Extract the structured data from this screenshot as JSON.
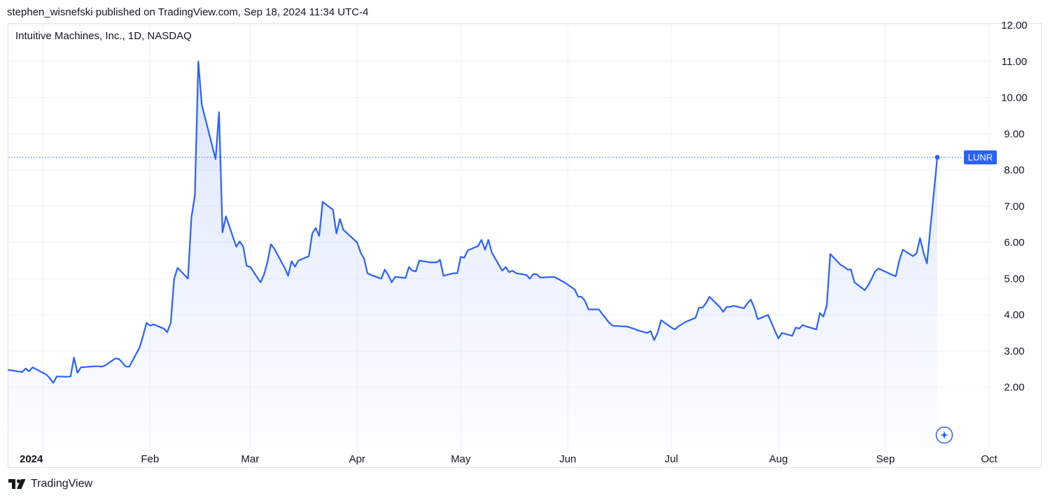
{
  "header": {
    "published": "stephen_wisnefski published on TradingView.com, Sep 18, 2024 11:34 UTC-4"
  },
  "symbol_info": "Intuitive Machines, Inc., 1D, NASDAQ",
  "footer": {
    "brand": "TradingView"
  },
  "colors": {
    "line": "#2962ff",
    "grid": "#f0f3fa",
    "badge": "#2962ff"
  },
  "icons": [
    "tradingview-logo-icon",
    "sparkle-icon"
  ],
  "chart_data": {
    "type": "area",
    "title": "",
    "symbol": "LUNR",
    "last_value": 8.35,
    "xlabel": "",
    "ylabel": "",
    "ylim": [
      1.26,
      12.0
    ],
    "y_ticks": [
      2.0,
      3.0,
      4.0,
      5.0,
      6.0,
      7.0,
      8.0,
      9.0,
      10.0,
      11.0,
      12.0
    ],
    "y_tick_labels": [
      "2.00",
      "3.00",
      "4.00",
      "5.00",
      "6.00",
      "7.00",
      "8.00",
      "9.00",
      "10.00",
      "11.00",
      "12.00"
    ],
    "x_range": [
      "2023-12-22",
      "2024-10-01"
    ],
    "x_ticks": [
      {
        "date": "2024-01-01",
        "label": "2024",
        "bold": true
      },
      {
        "date": "2024-02-01",
        "label": "Feb"
      },
      {
        "date": "2024-03-01",
        "label": "Mar"
      },
      {
        "date": "2024-04-01",
        "label": "Apr"
      },
      {
        "date": "2024-05-01",
        "label": "May"
      },
      {
        "date": "2024-06-01",
        "label": "Jun"
      },
      {
        "date": "2024-07-01",
        "label": "Jul"
      },
      {
        "date": "2024-08-01",
        "label": "Aug"
      },
      {
        "date": "2024-09-01",
        "label": "Sep"
      },
      {
        "date": "2024-10-01",
        "label": "Oct"
      }
    ],
    "grid": true,
    "series": [
      {
        "values": [
          [
            "2023-12-22",
            2.48
          ],
          [
            "2023-12-26",
            2.42
          ],
          [
            "2023-12-27",
            2.52
          ],
          [
            "2023-12-28",
            2.44
          ],
          [
            "2023-12-29",
            2.55
          ],
          [
            "2024-01-02",
            2.35
          ],
          [
            "2024-01-03",
            2.25
          ],
          [
            "2024-01-04",
            2.12
          ],
          [
            "2024-01-05",
            2.3
          ],
          [
            "2024-01-08",
            2.29
          ],
          [
            "2024-01-09",
            2.3
          ],
          [
            "2024-01-10",
            2.82
          ],
          [
            "2024-01-11",
            2.4
          ],
          [
            "2024-01-12",
            2.55
          ],
          [
            "2024-01-16",
            2.58
          ],
          [
            "2024-01-17",
            2.58
          ],
          [
            "2024-01-18",
            2.57
          ],
          [
            "2024-01-19",
            2.6
          ],
          [
            "2024-01-22",
            2.8
          ],
          [
            "2024-01-23",
            2.78
          ],
          [
            "2024-01-24",
            2.68
          ],
          [
            "2024-01-25",
            2.57
          ],
          [
            "2024-01-26",
            2.57
          ],
          [
            "2024-01-29",
            3.1
          ],
          [
            "2024-01-30",
            3.42
          ],
          [
            "2024-01-31",
            3.78
          ],
          [
            "2024-02-01",
            3.7
          ],
          [
            "2024-02-02",
            3.74
          ],
          [
            "2024-02-05",
            3.62
          ],
          [
            "2024-02-06",
            3.52
          ],
          [
            "2024-02-07",
            3.78
          ],
          [
            "2024-02-08",
            5.0
          ],
          [
            "2024-02-09",
            5.3
          ],
          [
            "2024-02-12",
            5.0
          ],
          [
            "2024-02-13",
            6.7
          ],
          [
            "2024-02-14",
            7.3
          ],
          [
            "2024-02-15",
            11.0
          ],
          [
            "2024-02-16",
            9.8
          ],
          [
            "2024-02-20",
            8.3
          ],
          [
            "2024-02-21",
            9.6
          ],
          [
            "2024-02-22",
            6.28
          ],
          [
            "2024-02-23",
            6.72
          ],
          [
            "2024-02-26",
            5.88
          ],
          [
            "2024-02-27",
            6.03
          ],
          [
            "2024-02-28",
            5.88
          ],
          [
            "2024-02-29",
            5.35
          ],
          [
            "2024-03-01",
            5.33
          ],
          [
            "2024-03-04",
            4.9
          ],
          [
            "2024-03-05",
            5.1
          ],
          [
            "2024-03-06",
            5.45
          ],
          [
            "2024-03-07",
            5.95
          ],
          [
            "2024-03-08",
            5.83
          ],
          [
            "2024-03-11",
            5.3
          ],
          [
            "2024-03-12",
            5.08
          ],
          [
            "2024-03-13",
            5.48
          ],
          [
            "2024-03-14",
            5.33
          ],
          [
            "2024-03-15",
            5.5
          ],
          [
            "2024-03-18",
            5.62
          ],
          [
            "2024-03-19",
            6.25
          ],
          [
            "2024-03-20",
            6.4
          ],
          [
            "2024-03-21",
            6.18
          ],
          [
            "2024-03-22",
            7.12
          ],
          [
            "2024-03-25",
            6.9
          ],
          [
            "2024-03-26",
            6.25
          ],
          [
            "2024-03-27",
            6.65
          ],
          [
            "2024-03-28",
            6.35
          ],
          [
            "2024-04-01",
            6.0
          ],
          [
            "2024-04-02",
            5.72
          ],
          [
            "2024-04-03",
            5.55
          ],
          [
            "2024-04-04",
            5.15
          ],
          [
            "2024-04-05",
            5.1
          ],
          [
            "2024-04-08",
            5.0
          ],
          [
            "2024-04-09",
            5.25
          ],
          [
            "2024-04-10",
            5.1
          ],
          [
            "2024-04-11",
            4.9
          ],
          [
            "2024-04-12",
            5.05
          ],
          [
            "2024-04-15",
            5.02
          ],
          [
            "2024-04-16",
            5.32
          ],
          [
            "2024-04-17",
            5.22
          ],
          [
            "2024-04-18",
            5.2
          ],
          [
            "2024-04-19",
            5.5
          ],
          [
            "2024-04-22",
            5.45
          ],
          [
            "2024-04-23",
            5.45
          ],
          [
            "2024-04-24",
            5.45
          ],
          [
            "2024-04-25",
            5.52
          ],
          [
            "2024-04-26",
            5.08
          ],
          [
            "2024-04-29",
            5.15
          ],
          [
            "2024-04-30",
            5.15
          ],
          [
            "2024-05-01",
            5.6
          ],
          [
            "2024-05-02",
            5.58
          ],
          [
            "2024-05-03",
            5.78
          ],
          [
            "2024-05-06",
            5.9
          ],
          [
            "2024-05-07",
            6.07
          ],
          [
            "2024-05-08",
            5.8
          ],
          [
            "2024-05-09",
            6.07
          ],
          [
            "2024-05-10",
            5.72
          ],
          [
            "2024-05-13",
            5.22
          ],
          [
            "2024-05-14",
            5.32
          ],
          [
            "2024-05-15",
            5.18
          ],
          [
            "2024-05-16",
            5.22
          ],
          [
            "2024-05-17",
            5.15
          ],
          [
            "2024-05-20",
            5.1
          ],
          [
            "2024-05-21",
            5.0
          ],
          [
            "2024-05-22",
            5.13
          ],
          [
            "2024-05-23",
            5.12
          ],
          [
            "2024-05-24",
            5.03
          ],
          [
            "2024-05-28",
            5.05
          ],
          [
            "2024-05-29",
            5.0
          ],
          [
            "2024-05-30",
            4.95
          ],
          [
            "2024-05-31",
            4.9
          ],
          [
            "2024-06-03",
            4.7
          ],
          [
            "2024-06-04",
            4.5
          ],
          [
            "2024-06-05",
            4.5
          ],
          [
            "2024-06-06",
            4.38
          ],
          [
            "2024-06-07",
            4.15
          ],
          [
            "2024-06-10",
            4.15
          ],
          [
            "2024-06-11",
            4.02
          ],
          [
            "2024-06-12",
            3.9
          ],
          [
            "2024-06-13",
            3.78
          ],
          [
            "2024-06-14",
            3.7
          ],
          [
            "2024-06-17",
            3.68
          ],
          [
            "2024-06-18",
            3.68
          ],
          [
            "2024-06-20",
            3.62
          ],
          [
            "2024-06-21",
            3.58
          ],
          [
            "2024-06-24",
            3.5
          ],
          [
            "2024-06-25",
            3.55
          ],
          [
            "2024-06-26",
            3.3
          ],
          [
            "2024-06-27",
            3.5
          ],
          [
            "2024-06-28",
            3.85
          ],
          [
            "2024-07-01",
            3.65
          ],
          [
            "2024-07-02",
            3.6
          ],
          [
            "2024-07-03",
            3.68
          ],
          [
            "2024-07-05",
            3.8
          ],
          [
            "2024-07-08",
            3.92
          ],
          [
            "2024-07-09",
            4.2
          ],
          [
            "2024-07-10",
            4.2
          ],
          [
            "2024-07-11",
            4.32
          ],
          [
            "2024-07-12",
            4.5
          ],
          [
            "2024-07-15",
            4.22
          ],
          [
            "2024-07-16",
            4.08
          ],
          [
            "2024-07-17",
            4.22
          ],
          [
            "2024-07-18",
            4.22
          ],
          [
            "2024-07-19",
            4.25
          ],
          [
            "2024-07-22",
            4.18
          ],
          [
            "2024-07-23",
            4.32
          ],
          [
            "2024-07-24",
            4.42
          ],
          [
            "2024-07-25",
            4.2
          ],
          [
            "2024-07-26",
            3.88
          ],
          [
            "2024-07-29",
            4.0
          ],
          [
            "2024-07-30",
            3.78
          ],
          [
            "2024-07-31",
            3.55
          ],
          [
            "2024-08-01",
            3.35
          ],
          [
            "2024-08-02",
            3.5
          ],
          [
            "2024-08-05",
            3.42
          ],
          [
            "2024-08-06",
            3.65
          ],
          [
            "2024-08-07",
            3.62
          ],
          [
            "2024-08-08",
            3.72
          ],
          [
            "2024-08-09",
            3.68
          ],
          [
            "2024-08-12",
            3.6
          ],
          [
            "2024-08-13",
            4.05
          ],
          [
            "2024-08-14",
            3.95
          ],
          [
            "2024-08-15",
            4.25
          ],
          [
            "2024-08-16",
            5.68
          ],
          [
            "2024-08-19",
            5.38
          ],
          [
            "2024-08-20",
            5.33
          ],
          [
            "2024-08-21",
            5.25
          ],
          [
            "2024-08-22",
            5.25
          ],
          [
            "2024-08-23",
            4.9
          ],
          [
            "2024-08-26",
            4.68
          ],
          [
            "2024-08-27",
            4.82
          ],
          [
            "2024-08-28",
            5.0
          ],
          [
            "2024-08-29",
            5.2
          ],
          [
            "2024-08-30",
            5.28
          ],
          [
            "2024-09-03",
            5.1
          ],
          [
            "2024-09-04",
            5.07
          ],
          [
            "2024-09-05",
            5.5
          ],
          [
            "2024-09-06",
            5.8
          ],
          [
            "2024-09-09",
            5.62
          ],
          [
            "2024-09-10",
            5.7
          ],
          [
            "2024-09-11",
            6.12
          ],
          [
            "2024-09-12",
            5.72
          ],
          [
            "2024-09-13",
            5.42
          ],
          [
            "2024-09-16",
            8.35
          ]
        ]
      }
    ]
  }
}
